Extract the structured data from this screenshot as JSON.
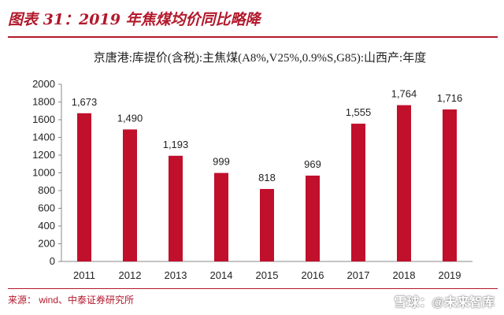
{
  "figure": {
    "caption": "图表 31：2019 年焦煤均价同比略降",
    "source": "来源： wind、中泰证券研究所",
    "watermark": "雪球：@未来智库"
  },
  "colors": {
    "bar": "#c0102c",
    "accent": "#b2182b",
    "axis": "#888888",
    "text": "#222222"
  },
  "chart_data": {
    "type": "bar",
    "title": "京唐港:库提价(含税):主焦煤(A8%,V25%,0.9%S,G85):山西产:年度",
    "xlabel": "",
    "ylabel": "",
    "categories": [
      "2011",
      "2012",
      "2013",
      "2014",
      "2015",
      "2016",
      "2017",
      "2018",
      "2019"
    ],
    "values": [
      1673,
      1490,
      1193,
      999,
      818,
      969,
      1555,
      1764,
      1716
    ],
    "value_labels": [
      "1,673",
      "1,490",
      "1,193",
      "999",
      "818",
      "969",
      "1,555",
      "1,764",
      "1,716"
    ],
    "ylim": [
      0,
      2000
    ],
    "yticks": [
      0,
      200,
      400,
      600,
      800,
      1000,
      1200,
      1400,
      1600,
      1800,
      2000
    ],
    "grid": false,
    "legend": "none"
  }
}
